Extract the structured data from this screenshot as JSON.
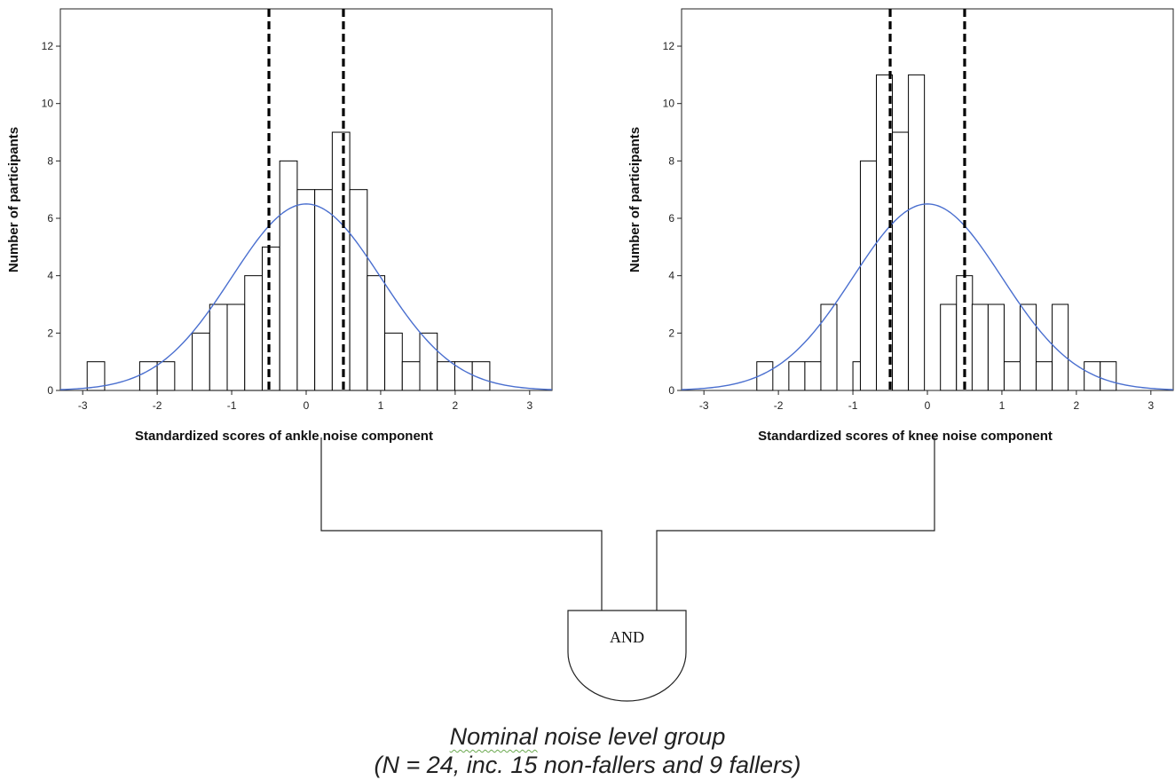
{
  "chart_data": [
    {
      "type": "bar",
      "subtype": "histogram-with-normal-curve",
      "xlabel": "Standardized scores of ankle noise component",
      "ylabel": "Number of participants",
      "xlim": [
        -3.3,
        3.3
      ],
      "ylim": [
        0,
        13.3
      ],
      "xticks": [
        "-3",
        "-2",
        "-1",
        "0",
        "1",
        "2",
        "3"
      ],
      "yticks": [
        "0",
        "2",
        "4",
        "6",
        "8",
        "10",
        "12"
      ],
      "bin_width": 0.235,
      "bins": [
        {
          "x0": -2.94,
          "count": 1
        },
        {
          "x0": -2.235,
          "count": 1
        },
        {
          "x0": -2.0,
          "count": 1
        },
        {
          "x0": -1.53,
          "count": 2
        },
        {
          "x0": -1.295,
          "count": 3
        },
        {
          "x0": -1.06,
          "count": 3
        },
        {
          "x0": -0.825,
          "count": 4
        },
        {
          "x0": -0.59,
          "count": 5
        },
        {
          "x0": -0.355,
          "count": 8
        },
        {
          "x0": -0.12,
          "count": 7
        },
        {
          "x0": 0.115,
          "count": 7
        },
        {
          "x0": 0.35,
          "count": 9
        },
        {
          "x0": 0.585,
          "count": 7
        },
        {
          "x0": 0.82,
          "count": 4
        },
        {
          "x0": 1.055,
          "count": 2
        },
        {
          "x0": 1.29,
          "count": 1
        },
        {
          "x0": 1.525,
          "count": 2
        },
        {
          "x0": 1.76,
          "count": 1
        },
        {
          "x0": 1.995,
          "count": 1
        },
        {
          "x0": 2.23,
          "count": 1
        }
      ],
      "normal_curve": {
        "mean": 0,
        "sd": 1,
        "peak": 6.5,
        "color": "#4a6fcf"
      },
      "cutoffs": [
        -0.5,
        0.5
      ],
      "bar_fill": "#ffffff",
      "bar_stroke": "#000000"
    },
    {
      "type": "bar",
      "subtype": "histogram-with-normal-curve",
      "xlabel": "Standardized scores of knee noise component",
      "ylabel": "Number of participants",
      "xlim": [
        -3.3,
        3.3
      ],
      "ylim": [
        0,
        13.3
      ],
      "xticks": [
        "-3",
        "-2",
        "-1",
        "0",
        "1",
        "2",
        "3"
      ],
      "yticks": [
        "0",
        "2",
        "4",
        "6",
        "8",
        "10",
        "12"
      ],
      "bin_width": 0.215,
      "bins": [
        {
          "x0": -2.29,
          "count": 1
        },
        {
          "x0": -1.86,
          "count": 1
        },
        {
          "x0": -1.645,
          "count": 1
        },
        {
          "x0": -1.43,
          "count": 3
        },
        {
          "x0": -1.0,
          "count": 1
        },
        {
          "x0": -0.9,
          "count": 8
        },
        {
          "x0": -0.685,
          "count": 11
        },
        {
          "x0": -0.47,
          "count": 9
        },
        {
          "x0": -0.255,
          "count": 11
        },
        {
          "x0": 0.175,
          "count": 3
        },
        {
          "x0": 0.39,
          "count": 4
        },
        {
          "x0": 0.6,
          "count": 3
        },
        {
          "x0": 0.815,
          "count": 3
        },
        {
          "x0": 1.03,
          "count": 1
        },
        {
          "x0": 1.245,
          "count": 3
        },
        {
          "x0": 1.46,
          "count": 1
        },
        {
          "x0": 1.675,
          "count": 3
        },
        {
          "x0": 2.105,
          "count": 1
        },
        {
          "x0": 2.32,
          "count": 1
        }
      ],
      "normal_curve": {
        "mean": 0,
        "sd": 1,
        "peak": 6.5,
        "color": "#4a6fcf"
      },
      "cutoffs": [
        -0.5,
        0.5
      ],
      "bar_fill": "#ffffff",
      "bar_stroke": "#000000"
    }
  ],
  "gate": {
    "label": "AND"
  },
  "caption": {
    "line1_word": "Nominal",
    "line1_rest": " noise level group",
    "line2": "(N = 24, inc. 15 non-fallers and 9 fallers)"
  }
}
